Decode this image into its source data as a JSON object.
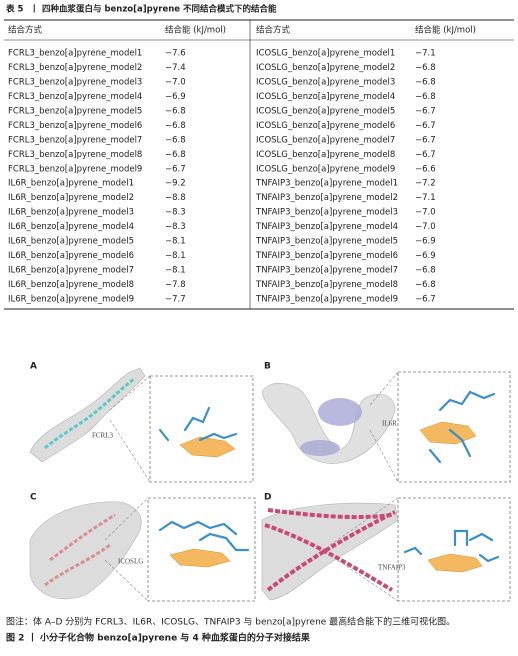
{
  "table": {
    "label": "表 5",
    "title": "四种血浆蛋白与 benzo[a]pyrene 不同结合模式下的结合能",
    "headers": [
      "结合方式",
      "结合能 (kJ/mol)",
      "结合方式",
      "结合能 (kJ/mol)"
    ],
    "left_rows": [
      [
        "FCRL3_benzo[a]pyrene_model1",
        "−7.6"
      ],
      [
        "FCRL3_benzo[a]pyrene_model2",
        "−7.4"
      ],
      [
        "FCRL3_benzo[a]pyrene_model3",
        "−7.0"
      ],
      [
        "FCRL3_benzo[a]pyrene_model4",
        "−6.9"
      ],
      [
        "FCRL3_benzo[a]pyrene_model5",
        "−6.8"
      ],
      [
        "FCRL3_benzo[a]pyrene_model6",
        "−6.8"
      ],
      [
        "FCRL3_benzo[a]pyrene_model7",
        "−6.8"
      ],
      [
        "FCRL3_benzo[a]pyrene_model8",
        "−6.8"
      ],
      [
        "FCRL3_benzo[a]pyrene_model9",
        "−6.7"
      ],
      [
        "IL6R_benzo[a]pyrene_model1",
        "−9.2"
      ],
      [
        "IL6R_benzo[a]pyrene_model2",
        "−8.8"
      ],
      [
        "IL6R_benzo[a]pyrene_model3",
        "−8.3"
      ],
      [
        "IL6R_benzo[a]pyrene_model4",
        "−8.3"
      ],
      [
        "IL6R_benzo[a]pyrene_model5",
        "−8.1"
      ],
      [
        "IL6R_benzo[a]pyrene_model6",
        "−8.1"
      ],
      [
        "IL6R_benzo[a]pyrene_model7",
        "−8.1"
      ],
      [
        "IL6R_benzo[a]pyrene_model8",
        "−7.8"
      ],
      [
        "IL6R_benzo[a]pyrene_model9",
        "−7.7"
      ]
    ],
    "right_rows": [
      [
        "ICOSLG_benzo[a]pyrene_model1",
        "−7.1"
      ],
      [
        "ICOSLG_benzo[a]pyrene_model2",
        "−6.8"
      ],
      [
        "ICOSLG_benzo[a]pyrene_model3",
        "−6.8"
      ],
      [
        "ICOSLG_benzo[a]pyrene_model4",
        "−6.8"
      ],
      [
        "ICOSLG_benzo[a]pyrene_model5",
        "−6.7"
      ],
      [
        "ICOSLG_benzo[a]pyrene_model6",
        "−6.7"
      ],
      [
        "ICOSLG_benzo[a]pyrene_model7",
        "−6.7"
      ],
      [
        "ICOSLG_benzo[a]pyrene_model8",
        "−6.7"
      ],
      [
        "ICOSLG_benzo[a]pyrene_model9",
        "−6.6"
      ],
      [
        "TNFAIP3_benzo[a]pyrene_model1",
        "−7.2"
      ],
      [
        "TNFAIP3_benzo[a]pyrene_model2",
        "−7.1"
      ],
      [
        "TNFAIP3_benzo[a]pyrene_model3",
        "−7.0"
      ],
      [
        "TNFAIP3_benzo[a]pyrene_model4",
        "−7.0"
      ],
      [
        "TNFAIP3_benzo[a]pyrene_model5",
        "−6.9"
      ],
      [
        "TNFAIP3_benzo[a]pyrene_model6",
        "−6.9"
      ],
      [
        "TNFAIP3_benzo[a]pyrene_model7",
        "−6.8"
      ],
      [
        "TNFAIP3_benzo[a]pyrene_model8",
        "−6.8"
      ],
      [
        "TNFAIP3_benzo[a]pyrene_model9",
        "−6.7"
      ]
    ]
  },
  "figure": {
    "panels": [
      {
        "letter": "A",
        "protein": "FCRL3"
      },
      {
        "letter": "B",
        "protein": "IL6R"
      },
      {
        "letter": "C",
        "protein": "ICOSLG"
      },
      {
        "letter": "D",
        "protein": "TNFAIP3"
      }
    ],
    "note": "图注：体 A–D 分别为 FCRL3、IL6R、ICOSLG、TNFAIP3 与 benzo[a]pyrene 最高结合能下的三维可视化图。",
    "label": "图 2",
    "title": "小分子化合物 benzo[a]pyrene 与 4 种血浆蛋白的分子对接结果"
  }
}
